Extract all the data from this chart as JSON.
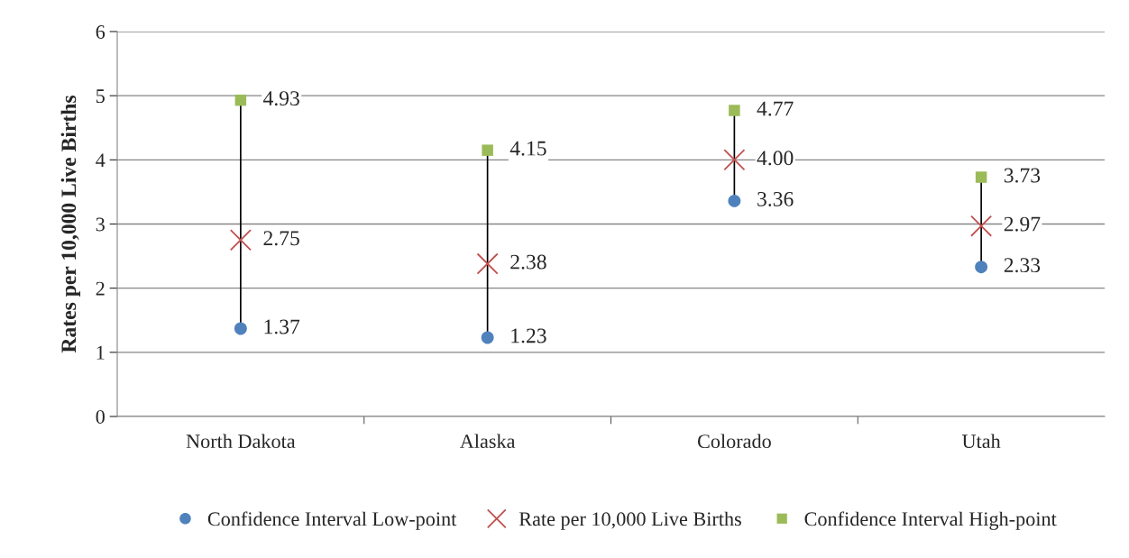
{
  "chart_data": {
    "type": "scatter",
    "categories": [
      "North Dakota",
      "Alaska",
      "Colorado",
      "Utah"
    ],
    "ylabel": "Rates per 10,000 Live Births",
    "ylim": [
      0,
      6
    ],
    "yticks": [
      0,
      1,
      2,
      3,
      4,
      5,
      6
    ],
    "grid": "y",
    "legend": "bottom",
    "series": [
      {
        "name": "Confidence Interval Low-point",
        "color": "#4f81bd",
        "marker": "circle",
        "values": [
          1.37,
          1.23,
          3.36,
          2.33
        ],
        "value_labels": [
          "1.37",
          "1.23",
          "3.36",
          "2.33"
        ]
      },
      {
        "name": "Rate per 10,000 Live Births",
        "color": "#c0504d",
        "marker": "cross",
        "values": [
          2.75,
          2.38,
          4.0,
          2.97
        ],
        "value_labels": [
          "2.75",
          "2.38",
          "4.00",
          "2.97"
        ]
      },
      {
        "name": "Confidence Interval High-point",
        "color": "#9bbb59",
        "marker": "square",
        "values": [
          4.93,
          4.15,
          4.77,
          3.73
        ],
        "value_labels": [
          "4.93",
          "4.15",
          "4.77",
          "3.73"
        ]
      }
    ]
  }
}
